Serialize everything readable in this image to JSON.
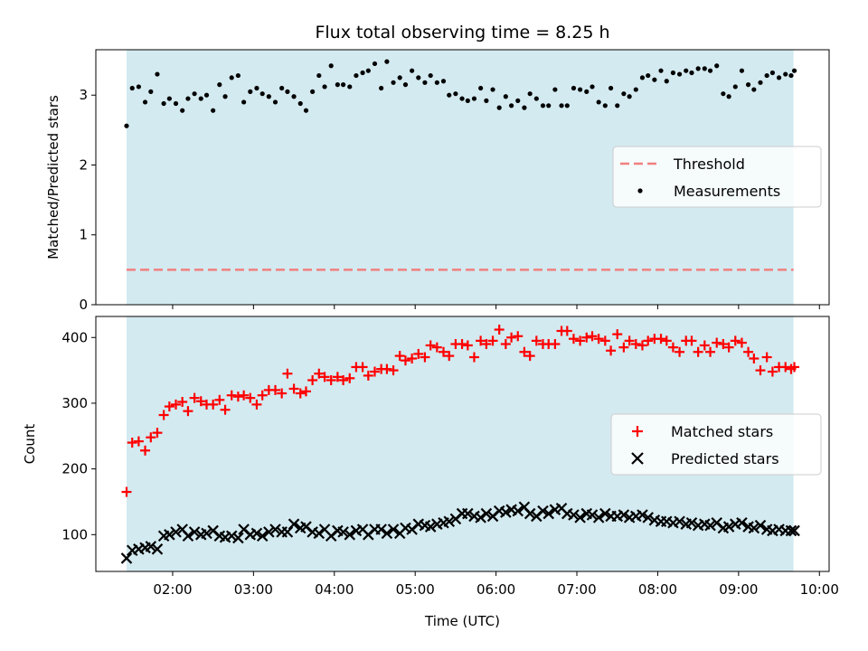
{
  "chart_data": [
    {
      "type": "scatter",
      "title": "Flux total observing time = 8.25 h",
      "ylabel": "Matched/Predicted stars",
      "ylim": [
        0,
        3.65
      ],
      "yticks": [
        "0",
        "1",
        "2",
        "3"
      ],
      "xlim": [
        1.05,
        10.12
      ],
      "observing_window": [
        1.43,
        9.68
      ],
      "threshold": {
        "name": "Threshold",
        "value": 0.5,
        "color": "#f08080"
      },
      "legend": {
        "placement": "center-right",
        "entries": [
          "Threshold",
          "Measurements"
        ]
      },
      "series": [
        {
          "name": "Measurements",
          "marker": "dot",
          "color": "#000000",
          "x": [
            1.43,
            1.5,
            1.58,
            1.66,
            1.73,
            1.81,
            1.89,
            1.96,
            2.04,
            2.12,
            2.19,
            2.27,
            2.35,
            2.42,
            2.5,
            2.58,
            2.65,
            2.73,
            2.81,
            2.88,
            2.96,
            3.04,
            3.11,
            3.19,
            3.27,
            3.35,
            3.42,
            3.5,
            3.58,
            3.65,
            3.73,
            3.81,
            3.88,
            3.96,
            4.04,
            4.11,
            4.19,
            4.27,
            4.35,
            4.42,
            4.5,
            4.58,
            4.65,
            4.73,
            4.81,
            4.88,
            4.96,
            5.04,
            5.12,
            5.19,
            5.27,
            5.35,
            5.42,
            5.5,
            5.58,
            5.65,
            5.73,
            5.81,
            5.88,
            5.96,
            6.04,
            6.12,
            6.19,
            6.27,
            6.35,
            6.42,
            6.5,
            6.58,
            6.65,
            6.73,
            6.81,
            6.88,
            6.96,
            7.04,
            7.12,
            7.19,
            7.27,
            7.35,
            7.42,
            7.5,
            7.58,
            7.65,
            7.73,
            7.81,
            7.88,
            7.96,
            8.04,
            8.11,
            8.19,
            8.27,
            8.35,
            8.42,
            8.5,
            8.58,
            8.65,
            8.73,
            8.81,
            8.88,
            8.96,
            9.04,
            9.12,
            9.19,
            9.27,
            9.35,
            9.42,
            9.5,
            9.58,
            9.65,
            9.69
          ],
          "y": [
            2.56,
            3.1,
            3.12,
            2.9,
            3.05,
            3.3,
            2.88,
            2.95,
            2.88,
            2.78,
            2.95,
            3.02,
            2.95,
            3.0,
            2.78,
            3.15,
            2.98,
            3.25,
            3.28,
            2.9,
            3.05,
            3.1,
            3.02,
            2.98,
            2.9,
            3.1,
            3.05,
            2.98,
            2.88,
            2.78,
            3.05,
            3.28,
            3.12,
            3.42,
            3.15,
            3.15,
            3.12,
            3.28,
            3.32,
            3.35,
            3.45,
            3.1,
            3.48,
            3.18,
            3.25,
            3.15,
            3.35,
            3.25,
            3.18,
            3.28,
            3.18,
            3.2,
            3.0,
            3.02,
            2.95,
            2.92,
            2.95,
            3.1,
            2.92,
            3.08,
            2.82,
            2.98,
            2.85,
            2.92,
            2.82,
            3.02,
            2.95,
            2.85,
            2.85,
            3.08,
            2.85,
            2.85,
            3.1,
            3.08,
            3.05,
            3.12,
            2.9,
            2.85,
            3.1,
            2.85,
            3.02,
            2.98,
            3.08,
            3.25,
            3.28,
            3.22,
            3.35,
            3.2,
            3.32,
            3.3,
            3.35,
            3.32,
            3.38,
            3.38,
            3.35,
            3.42,
            3.02,
            2.98,
            3.12,
            3.35,
            3.15,
            3.08,
            3.18,
            3.28,
            3.32,
            3.25,
            3.3,
            3.28,
            3.35
          ]
        }
      ]
    },
    {
      "type": "scatter",
      "xlabel": "Time (UTC)",
      "ylabel": "Count",
      "ylim": [
        44,
        432
      ],
      "yticks": [
        "100",
        "200",
        "300",
        "400"
      ],
      "xlim": [
        1.05,
        10.12
      ],
      "xticks": [
        {
          "value": 2,
          "label": "02:00"
        },
        {
          "value": 3,
          "label": "03:00"
        },
        {
          "value": 4,
          "label": "04:00"
        },
        {
          "value": 5,
          "label": "05:00"
        },
        {
          "value": 6,
          "label": "06:00"
        },
        {
          "value": 7,
          "label": "07:00"
        },
        {
          "value": 8,
          "label": "08:00"
        },
        {
          "value": 9,
          "label": "09:00"
        },
        {
          "value": 10,
          "label": "10:00"
        }
      ],
      "observing_window": [
        1.43,
        9.68
      ],
      "legend": {
        "placement": "center-right",
        "entries": [
          "Matched stars",
          "Predicted stars"
        ]
      },
      "series": [
        {
          "name": "Matched stars",
          "marker": "plus",
          "color": "#ff0000",
          "x": [
            1.43,
            1.5,
            1.58,
            1.66,
            1.73,
            1.81,
            1.89,
            1.96,
            2.04,
            2.12,
            2.19,
            2.27,
            2.35,
            2.42,
            2.5,
            2.58,
            2.65,
            2.73,
            2.81,
            2.88,
            2.96,
            3.04,
            3.11,
            3.19,
            3.27,
            3.35,
            3.42,
            3.5,
            3.58,
            3.65,
            3.73,
            3.81,
            3.88,
            3.96,
            4.04,
            4.11,
            4.19,
            4.27,
            4.35,
            4.42,
            4.5,
            4.58,
            4.65,
            4.73,
            4.81,
            4.88,
            4.96,
            5.04,
            5.12,
            5.19,
            5.27,
            5.35,
            5.42,
            5.5,
            5.58,
            5.65,
            5.73,
            5.81,
            5.88,
            5.96,
            6.04,
            6.12,
            6.19,
            6.27,
            6.35,
            6.42,
            6.5,
            6.58,
            6.65,
            6.73,
            6.81,
            6.88,
            6.96,
            7.04,
            7.12,
            7.19,
            7.27,
            7.35,
            7.42,
            7.5,
            7.58,
            7.65,
            7.73,
            7.81,
            7.88,
            7.96,
            8.04,
            8.11,
            8.19,
            8.27,
            8.35,
            8.42,
            8.5,
            8.58,
            8.65,
            8.73,
            8.81,
            8.88,
            8.96,
            9.04,
            9.12,
            9.19,
            9.27,
            9.35,
            9.42,
            9.5,
            9.58,
            9.65,
            9.69
          ],
          "y": [
            165,
            240,
            242,
            228,
            248,
            255,
            282,
            295,
            298,
            302,
            288,
            308,
            303,
            298,
            298,
            305,
            290,
            312,
            310,
            312,
            308,
            298,
            312,
            320,
            320,
            315,
            345,
            322,
            315,
            318,
            335,
            345,
            340,
            335,
            340,
            335,
            338,
            355,
            355,
            342,
            348,
            352,
            352,
            350,
            372,
            365,
            368,
            375,
            370,
            388,
            385,
            378,
            372,
            390,
            390,
            388,
            370,
            395,
            390,
            395,
            412,
            390,
            400,
            402,
            378,
            372,
            395,
            390,
            390,
            390,
            410,
            410,
            398,
            395,
            400,
            402,
            398,
            395,
            380,
            405,
            385,
            395,
            390,
            388,
            395,
            398,
            398,
            395,
            385,
            378,
            395,
            395,
            378,
            388,
            378,
            392,
            390,
            385,
            395,
            392,
            378,
            368,
            350,
            370,
            348,
            355,
            355,
            352,
            355
          ],
          "note": ""
        },
        {
          "name": "Predicted stars",
          "marker": "x",
          "color": "#000000",
          "x": [
            1.43,
            1.5,
            1.58,
            1.66,
            1.73,
            1.81,
            1.89,
            1.96,
            2.04,
            2.12,
            2.19,
            2.27,
            2.35,
            2.42,
            2.5,
            2.58,
            2.65,
            2.73,
            2.81,
            2.88,
            2.96,
            3.04,
            3.11,
            3.19,
            3.27,
            3.35,
            3.42,
            3.5,
            3.58,
            3.65,
            3.73,
            3.81,
            3.88,
            3.96,
            4.04,
            4.11,
            4.19,
            4.27,
            4.35,
            4.42,
            4.5,
            4.58,
            4.65,
            4.73,
            4.81,
            4.88,
            4.96,
            5.04,
            5.12,
            5.19,
            5.27,
            5.35,
            5.42,
            5.5,
            5.58,
            5.65,
            5.73,
            5.81,
            5.88,
            5.96,
            6.04,
            6.12,
            6.19,
            6.27,
            6.35,
            6.42,
            6.5,
            6.58,
            6.65,
            6.73,
            6.81,
            6.88,
            6.96,
            7.04,
            7.12,
            7.19,
            7.27,
            7.35,
            7.42,
            7.5,
            7.58,
            7.65,
            7.73,
            7.81,
            7.88,
            7.96,
            8.04,
            8.11,
            8.19,
            8.27,
            8.35,
            8.42,
            8.5,
            8.58,
            8.65,
            8.73,
            8.81,
            8.88,
            8.96,
            9.04,
            9.12,
            9.19,
            9.27,
            9.35,
            9.42,
            9.5,
            9.58,
            9.65,
            9.69
          ],
          "y": [
            64,
            76,
            78,
            80,
            82,
            78,
            98,
            100,
            104,
            108,
            98,
            104,
            100,
            102,
            106,
            98,
            96,
            98,
            95,
            108,
            100,
            102,
            98,
            104,
            108,
            104,
            104,
            116,
            110,
            112,
            104,
            102,
            108,
            98,
            106,
            104,
            100,
            106,
            108,
            100,
            108,
            108,
            102,
            108,
            102,
            110,
            108,
            116,
            114,
            112,
            116,
            118,
            120,
            124,
            132,
            132,
            128,
            126,
            132,
            128,
            136,
            134,
            138,
            136,
            142,
            132,
            128,
            136,
            132,
            138,
            140,
            132,
            130,
            126,
            132,
            130,
            126,
            132,
            128,
            128,
            130,
            126,
            128,
            130,
            126,
            122,
            120,
            120,
            118,
            120,
            116,
            118,
            114,
            116,
            114,
            118,
            110,
            112,
            116,
            118,
            112,
            110,
            114,
            108,
            106,
            108,
            106,
            106,
            106
          ]
        }
      ]
    }
  ]
}
